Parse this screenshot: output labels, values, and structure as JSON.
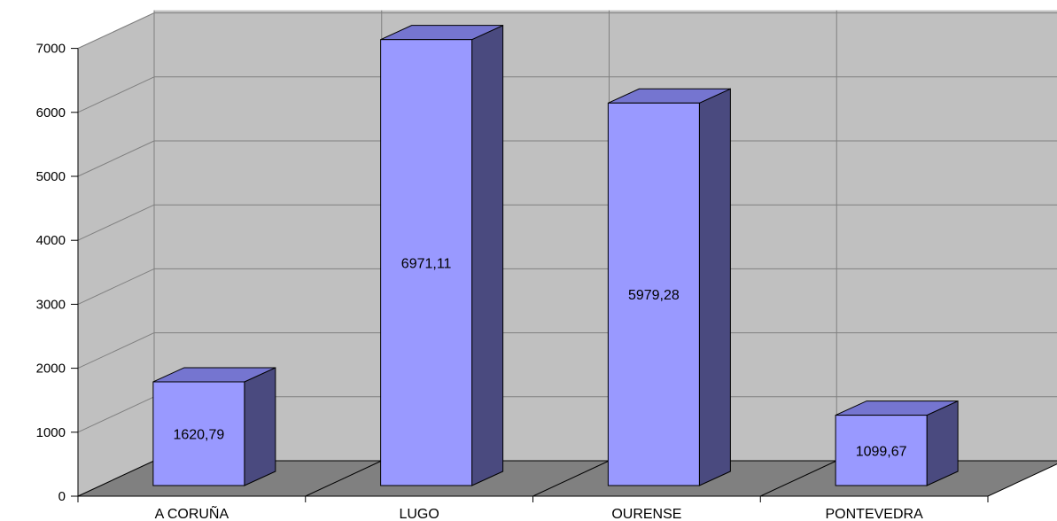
{
  "chart_data": {
    "type": "bar",
    "title": "",
    "xlabel": "",
    "ylabel": "",
    "categories": [
      "A CORUÑA",
      "LUGO",
      "OURENSE",
      "PONTEVEDRA"
    ],
    "values": [
      1620.79,
      6971.11,
      5979.28,
      1099.67
    ],
    "value_labels": [
      "1620,79",
      "6971,11",
      "5979,28",
      "1099,67"
    ],
    "ylim": [
      0,
      7000
    ],
    "yticks": [
      0,
      1000,
      2000,
      3000,
      4000,
      5000,
      6000,
      7000
    ],
    "grid": true,
    "three_d": true,
    "legend": "none",
    "colors": {
      "bar_front": "#9999ff",
      "bar_top": "#7575d0",
      "bar_side": "#4a4a7f",
      "wall": "#c0c0c0",
      "floor": "#808080",
      "gridline": "#808080"
    }
  }
}
